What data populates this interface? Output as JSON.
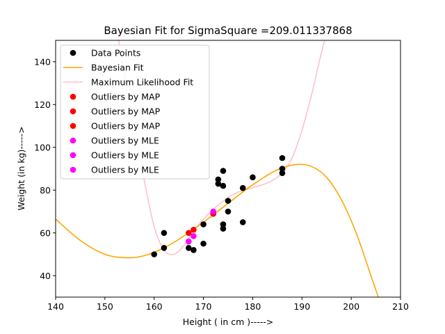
{
  "chart_data": {
    "type": "scatter",
    "title": "Bayesian Fit for SigmaSquare =209.011337868",
    "xlabel": "Height ( in cm )----->",
    "ylabel": "Weight (in kg)----->",
    "xlim": [
      140,
      210
    ],
    "ylim": [
      30,
      150
    ],
    "x_ticks": [
      "140",
      "150",
      "160",
      "170",
      "180",
      "190",
      "200",
      "210"
    ],
    "y_ticks": [
      "40",
      "60",
      "80",
      "100",
      "120",
      "140"
    ],
    "x_tick_values": [
      140,
      150,
      160,
      170,
      180,
      190,
      200,
      210
    ],
    "y_tick_values": [
      40,
      60,
      80,
      100,
      120,
      140
    ],
    "grid": false,
    "legend_position": "top-left",
    "legend": [
      {
        "label": "Data Points",
        "marker": "dot",
        "color": "#000000"
      },
      {
        "label": "Bayesian Fit",
        "marker": "line",
        "color": "#ffa500"
      },
      {
        "label": "Maximum Likelihood Fit",
        "marker": "line",
        "color": "#ffc0cb"
      },
      {
        "label": "Outliers by MAP",
        "marker": "dot",
        "color": "#ff0000"
      },
      {
        "label": "Outliers by MAP",
        "marker": "dot",
        "color": "#ff0000"
      },
      {
        "label": "Outliers by MAP",
        "marker": "dot",
        "color": "#ff0000"
      },
      {
        "label": "Outliers by MLE",
        "marker": "dot",
        "color": "#ff00ff"
      },
      {
        "label": "Outliers by MLE",
        "marker": "dot",
        "color": "#ff00ff"
      },
      {
        "label": "Outliers by MLE",
        "marker": "dot",
        "color": "#ff00ff"
      }
    ],
    "series": [
      {
        "name": "Data Points",
        "color": "#000000",
        "points": [
          [
            160,
            50
          ],
          [
            162,
            53
          ],
          [
            162,
            60
          ],
          [
            167,
            53
          ],
          [
            168,
            52
          ],
          [
            170,
            55
          ],
          [
            170,
            64
          ],
          [
            172,
            69
          ],
          [
            173,
            83
          ],
          [
            173,
            85
          ],
          [
            174,
            82
          ],
          [
            174,
            89
          ],
          [
            174,
            62
          ],
          [
            174,
            64
          ],
          [
            175,
            75
          ],
          [
            175,
            70
          ],
          [
            178,
            65
          ],
          [
            178,
            81
          ],
          [
            180,
            86
          ],
          [
            186,
            95
          ],
          [
            186,
            88
          ],
          [
            186,
            90
          ]
        ]
      },
      {
        "name": "Bayesian Fit",
        "color": "#ffa500",
        "points": [
          [
            140,
            66.5
          ],
          [
            145,
            56.5
          ],
          [
            150,
            50.0
          ],
          [
            154.5,
            48.4
          ],
          [
            158,
            49.4
          ],
          [
            162,
            53.0
          ],
          [
            166,
            58.5
          ],
          [
            170,
            65.0
          ],
          [
            175,
            73.8
          ],
          [
            180,
            82.5
          ],
          [
            185,
            89.5
          ],
          [
            189,
            92.0
          ],
          [
            192,
            91.0
          ],
          [
            195,
            86.0
          ],
          [
            198,
            75.5
          ],
          [
            201,
            60.0
          ],
          [
            204,
            40.0
          ],
          [
            205.5,
            30.0
          ]
        ]
      },
      {
        "name": "Maximum Likelihood Fit",
        "color": "#ffc0cb",
        "points": [
          [
            152.8,
            150
          ],
          [
            155,
            120
          ],
          [
            158,
            84.5
          ],
          [
            160,
            63.0
          ],
          [
            162,
            52.0
          ],
          [
            164,
            50.0
          ],
          [
            166,
            54.0
          ],
          [
            168,
            61.0
          ],
          [
            170,
            66.5
          ],
          [
            173,
            73.0
          ],
          [
            176,
            78.0
          ],
          [
            179,
            80.5
          ],
          [
            182,
            82.5
          ],
          [
            184,
            84.5
          ],
          [
            186,
            88.0
          ],
          [
            188,
            95.0
          ],
          [
            190,
            108.0
          ],
          [
            192,
            125.0
          ],
          [
            193.5,
            140.0
          ],
          [
            194.6,
            150
          ]
        ]
      },
      {
        "name": "Outliers by MAP",
        "color": "#ff0000",
        "points": [
          [
            167,
            60
          ],
          [
            168,
            61.5
          ],
          [
            172,
            69
          ]
        ]
      },
      {
        "name": "Outliers by MLE",
        "color": "#ff00ff",
        "points": [
          [
            167,
            56
          ],
          [
            168,
            58.5
          ],
          [
            172,
            70
          ]
        ]
      }
    ]
  }
}
